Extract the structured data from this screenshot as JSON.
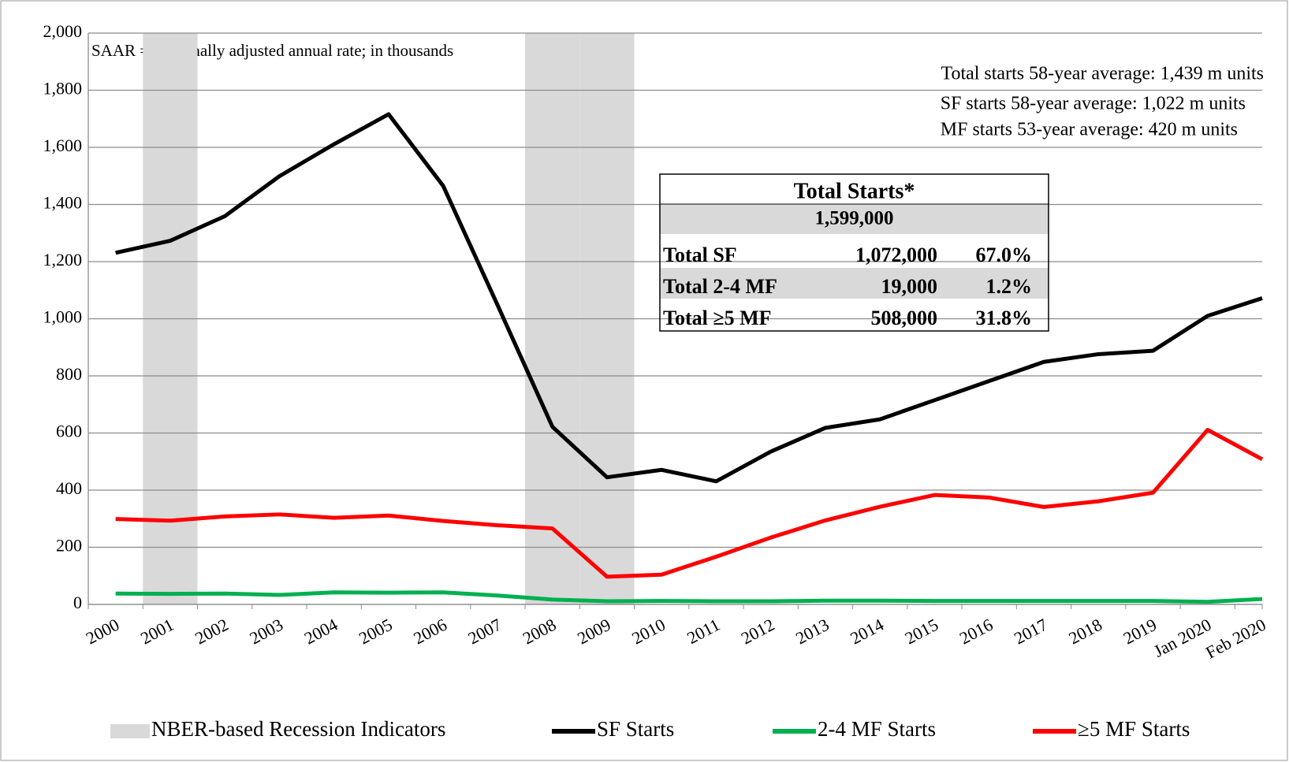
{
  "chart_data": {
    "type": "line",
    "categories": [
      "2000",
      "2001",
      "2002",
      "2003",
      "2004",
      "2005",
      "2006",
      "2007",
      "2008",
      "2009",
      "2010",
      "2011",
      "2012",
      "2013",
      "2014",
      "2015",
      "2016",
      "2017",
      "2018",
      "2019",
      "Jan 2020",
      "Feb 2020"
    ],
    "recession": {
      "name": "NBER-based Recession Indicators",
      "color": "#d9d9d9",
      "values": [
        0,
        1,
        0,
        0,
        0,
        0,
        0,
        0,
        1,
        1,
        0,
        0,
        0,
        0,
        0,
        0,
        0,
        0,
        0,
        0,
        0,
        0
      ]
    },
    "series": [
      {
        "name": "SF Starts",
        "color": "#000000",
        "values": [
          1231,
          1273,
          1359,
          1499,
          1611,
          1716,
          1465,
          1046,
          622,
          445,
          471,
          431,
          535,
          618,
          648,
          715,
          782,
          849,
          876,
          888,
          1010,
          1072
        ]
      },
      {
        "name": "2-4 MF Starts",
        "color": "#00b050",
        "values": [
          38,
          37,
          38,
          33,
          42,
          41,
          42,
          31,
          17,
          11,
          12,
          11,
          11,
          13,
          13,
          12,
          12,
          12,
          12,
          12,
          9,
          19
        ]
      },
      {
        "name": "≥5 MF Starts",
        "color": "#ff0000",
        "values": [
          299,
          293,
          308,
          315,
          303,
          311,
          292,
          277,
          266,
          97,
          104,
          167,
          234,
          294,
          342,
          383,
          374,
          341,
          361,
          391,
          611,
          508
        ]
      }
    ],
    "ylim": [
      0,
      2000
    ],
    "yticks": [
      0,
      200,
      400,
      600,
      800,
      {
        "value": 1000,
        "label": "1,000"
      },
      {
        "value": 1200,
        "label": "1,200"
      },
      {
        "value": 1400,
        "label": "1,400"
      },
      {
        "value": 1600,
        "label": "1,600"
      },
      {
        "value": 1800,
        "label": "1,800"
      },
      {
        "value": 2000,
        "label": "2,000"
      }
    ],
    "grid": true,
    "annotations": [
      "SAAR = Seasonally adjusted annual rate; in thousands",
      "Total starts 58-year average: 1,439 m units",
      "SF starts 58-year average: 1,022 m units",
      "MF starts 53-year average: 420 m units"
    ],
    "table": {
      "title": "Total Starts*",
      "total": "1,599,000",
      "rows": [
        [
          "Total SF",
          "1,072,000",
          "67.0%"
        ],
        [
          "Total 2-4  MF",
          "19,000",
          "1.2%"
        ],
        [
          "Total  ≥5 MF",
          "508,000",
          "31.8%"
        ]
      ]
    }
  }
}
